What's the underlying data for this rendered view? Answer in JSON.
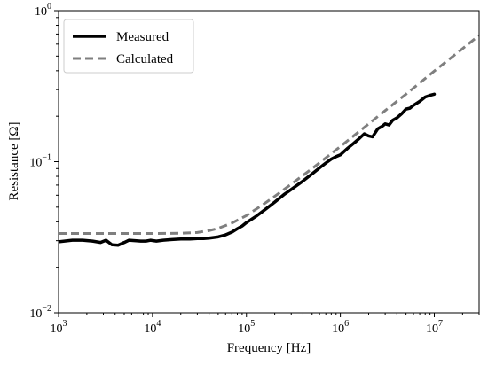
{
  "chart_data": {
    "type": "line",
    "xlabel": "Frequency [Hz]",
    "ylabel": "Resistance [Ω]",
    "xscale": "log",
    "yscale": "log",
    "xlim": [
      1000,
      30000000
    ],
    "ylim": [
      0.01,
      1
    ],
    "grid": false,
    "legend_position": "top-left",
    "x_ticks": [
      {
        "value": 1000,
        "base": "10",
        "exp": "3"
      },
      {
        "value": 10000,
        "base": "10",
        "exp": "4"
      },
      {
        "value": 100000,
        "base": "10",
        "exp": "5"
      },
      {
        "value": 1000000,
        "base": "10",
        "exp": "6"
      },
      {
        "value": 10000000,
        "base": "10",
        "exp": "7"
      }
    ],
    "y_ticks": [
      {
        "value": 0.01,
        "base": "10",
        "exp": "−2"
      },
      {
        "value": 0.1,
        "base": "10",
        "exp": "−1"
      },
      {
        "value": 1,
        "base": "10",
        "exp": "0"
      }
    ],
    "series": [
      {
        "name": "Measured",
        "color": "#000000",
        "style": "solid",
        "points": [
          [
            1000,
            0.0295
          ],
          [
            1400,
            0.0302
          ],
          [
            1800,
            0.0302
          ],
          [
            2300,
            0.0298
          ],
          [
            2800,
            0.0292
          ],
          [
            3200,
            0.0302
          ],
          [
            3700,
            0.0282
          ],
          [
            4300,
            0.028
          ],
          [
            5000,
            0.0292
          ],
          [
            5600,
            0.0302
          ],
          [
            6500,
            0.03
          ],
          [
            7500,
            0.0298
          ],
          [
            8500,
            0.0298
          ],
          [
            9500,
            0.0302
          ],
          [
            11000,
            0.0298
          ],
          [
            13000,
            0.0302
          ],
          [
            16000,
            0.0305
          ],
          [
            20000,
            0.0308
          ],
          [
            25000,
            0.0308
          ],
          [
            30000,
            0.031
          ],
          [
            35000,
            0.031
          ],
          [
            40000,
            0.0312
          ],
          [
            50000,
            0.0318
          ],
          [
            60000,
            0.0328
          ],
          [
            70000,
            0.0342
          ],
          [
            80000,
            0.036
          ],
          [
            90000,
            0.0375
          ],
          [
            100000,
            0.0395
          ],
          [
            130000,
            0.044
          ],
          [
            160000,
            0.0485
          ],
          [
            200000,
            0.054
          ],
          [
            250000,
            0.0605
          ],
          [
            300000,
            0.0655
          ],
          [
            400000,
            0.0745
          ],
          [
            500000,
            0.083
          ],
          [
            600000,
            0.091
          ],
          [
            700000,
            0.098
          ],
          [
            800000,
            0.104
          ],
          [
            900000,
            0.108
          ],
          [
            1000000,
            0.111
          ],
          [
            1200000,
            0.123
          ],
          [
            1400000,
            0.133
          ],
          [
            1600000,
            0.143
          ],
          [
            1800000,
            0.153
          ],
          [
            2000000,
            0.148
          ],
          [
            2200000,
            0.146
          ],
          [
            2500000,
            0.165
          ],
          [
            2800000,
            0.172
          ],
          [
            3000000,
            0.178
          ],
          [
            3300000,
            0.175
          ],
          [
            3600000,
            0.188
          ],
          [
            4000000,
            0.195
          ],
          [
            4500000,
            0.208
          ],
          [
            5000000,
            0.223
          ],
          [
            5500000,
            0.226
          ],
          [
            6000000,
            0.236
          ],
          [
            7000000,
            0.251
          ],
          [
            8000000,
            0.268
          ],
          [
            9000000,
            0.275
          ],
          [
            10000000,
            0.28
          ]
        ]
      },
      {
        "name": "Calculated",
        "color": "#7f7f7f",
        "style": "dashed",
        "points": [
          [
            1000,
            0.0335
          ],
          [
            3000,
            0.0335
          ],
          [
            10000,
            0.0335
          ],
          [
            20000,
            0.0336
          ],
          [
            30000,
            0.034
          ],
          [
            40000,
            0.035
          ],
          [
            50000,
            0.0362
          ],
          [
            70000,
            0.0392
          ],
          [
            100000,
            0.044
          ],
          [
            150000,
            0.052
          ],
          [
            200000,
            0.059
          ],
          [
            300000,
            0.071
          ],
          [
            500000,
            0.09
          ],
          [
            700000,
            0.106
          ],
          [
            1000000,
            0.126
          ],
          [
            2000000,
            0.178
          ],
          [
            3000000,
            0.218
          ],
          [
            5000000,
            0.28
          ],
          [
            7000000,
            0.332
          ],
          [
            10000000,
            0.398
          ],
          [
            20000000,
            0.56
          ],
          [
            30000000,
            0.685
          ]
        ]
      }
    ]
  }
}
